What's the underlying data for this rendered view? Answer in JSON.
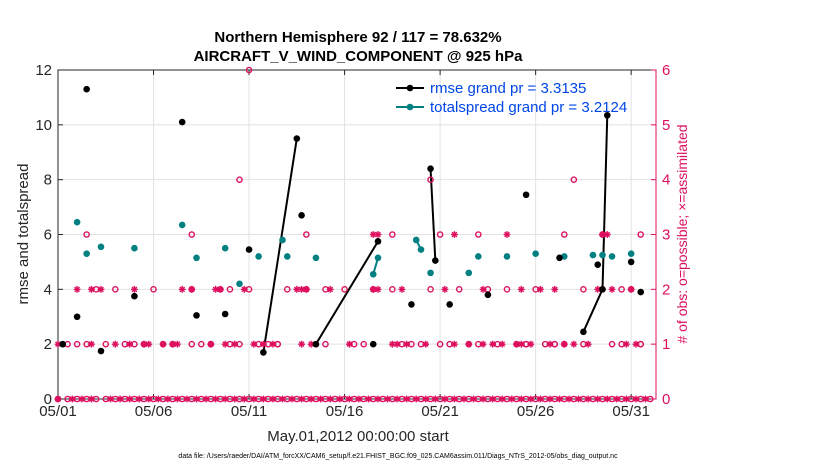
{
  "chart_data": {
    "type": "scatter",
    "title": "Northern Hemisphere 92 / 117 = 78.632%",
    "subtitle": "AIRCRAFT_V_WIND_COMPONENT @ 925 hPa",
    "xlabel": "May.01,2012 00:00:00 start",
    "ylabel": "rmse and totalspread",
    "y2label": "# of obs: o=possible; ×=assimilated",
    "footer": "data file: /Users/raeder/DAI/ATM_forcXX/CAM6_setup/f.e21.FHIST_BGC.f09_025.CAM6assim.011/Diags_NTrS_2012-05/obs_diag_output.nc",
    "xlim": [
      0,
      31.3
    ],
    "ylim": [
      0,
      12
    ],
    "y2lim": [
      0,
      6
    ],
    "x_ticks": [
      0,
      5,
      10,
      15,
      20,
      25,
      30
    ],
    "x_tick_labels": [
      "05/01",
      "05/06",
      "05/11",
      "05/16",
      "05/21",
      "05/26",
      "05/31"
    ],
    "y_ticks": [
      0,
      2,
      4,
      6,
      8,
      10,
      12
    ],
    "y2_ticks": [
      0,
      1,
      2,
      3,
      4,
      5,
      6
    ],
    "colors": {
      "rmse": "#000000",
      "spread": "#008080",
      "obs": "#dd1060",
      "legend_text": "#0046e6",
      "grid": "#e2e2e2"
    },
    "legend": [
      {
        "name": "rmse grand pr = 3.3135",
        "color": "#000000"
      },
      {
        "name": "totalspread grand pr = 3.2124",
        "color": "#008080"
      }
    ],
    "series": [
      {
        "name": "rmse",
        "x": [
          0.25,
          1.0,
          1.5,
          2.25,
          4.0,
          6.5,
          7.25,
          8.75,
          10.0,
          10.75,
          12.5,
          12.75,
          13.5,
          16.5,
          16.75,
          18.5,
          19.5,
          19.75,
          20.5,
          22.5,
          24.5,
          26.25,
          27.5,
          28.25,
          28.5,
          28.75,
          30.0,
          30.5
        ],
        "y": [
          2.0,
          3.0,
          11.3,
          1.75,
          3.75,
          10.1,
          3.05,
          3.1,
          5.45,
          1.7,
          9.5,
          6.7,
          2.0,
          2.0,
          5.75,
          3.45,
          8.4,
          5.05,
          3.45,
          3.8,
          7.45,
          5.15,
          2.45,
          4.9,
          4.0,
          10.35,
          5.0,
          3.9
        ],
        "connect_pairs": [
          [
            9,
            10
          ],
          [
            12,
            14
          ],
          [
            16,
            17
          ],
          [
            22,
            24
          ],
          [
            24,
            25
          ]
        ]
      },
      {
        "name": "totalspread",
        "x": [
          0.25,
          1.0,
          1.5,
          2.25,
          4.0,
          6.5,
          7.25,
          8.75,
          9.5,
          10.5,
          11.75,
          12.0,
          13.5,
          16.5,
          16.75,
          18.75,
          19.0,
          19.5,
          21.5,
          22.0,
          23.5,
          25.0,
          26.5,
          28.0,
          28.5,
          29.0,
          30.0
        ],
        "y": [
          2.0,
          6.45,
          5.3,
          5.55,
          5.5,
          6.35,
          5.15,
          5.5,
          4.2,
          5.2,
          5.8,
          5.2,
          5.15,
          4.55,
          5.15,
          5.8,
          5.45,
          4.6,
          4.6,
          5.2,
          5.2,
          5.3,
          5.2,
          5.25,
          5.25,
          5.2,
          5.3
        ],
        "connect_pairs": [
          [
            13,
            14
          ],
          [
            15,
            16
          ]
        ]
      },
      {
        "name": "obs_possible",
        "axis": "right",
        "x": [
          0.0,
          0.5,
          1.0,
          1.5,
          2.0,
          2.5,
          3.0,
          3.5,
          4.0,
          4.5,
          5.0,
          5.5,
          6.0,
          6.5,
          7.0,
          7.5,
          8.0,
          8.5,
          9.0,
          9.5,
          10.0,
          10.5,
          11.0,
          11.5,
          12.0,
          12.5,
          13.0,
          13.5,
          14.0,
          14.5,
          15.0,
          15.5,
          16.0,
          16.5,
          17.0,
          17.5,
          18.0,
          18.5,
          19.0,
          19.5,
          20.0,
          20.5,
          21.0,
          21.5,
          22.0,
          22.5,
          23.0,
          23.5,
          24.0,
          24.5,
          25.0,
          25.5,
          26.0,
          26.5,
          27.0,
          27.5,
          28.0,
          28.5,
          29.0,
          29.5,
          30.0,
          30.5,
          31.0,
          1.0,
          1.5,
          3.5,
          4.0,
          4.5,
          5.5,
          6.0,
          7.0,
          7.5,
          8.0,
          9.0,
          9.5,
          11.0,
          11.5,
          14.0,
          16.0,
          18.0,
          20.5,
          22.0,
          24.0,
          24.5,
          25.5,
          26.0,
          26.5,
          27.5,
          29.5,
          30.5,
          2.0,
          3.0,
          5.0,
          7.0,
          8.5,
          9.0,
          10.0,
          12.0,
          13.0,
          14.0,
          15.0,
          16.5,
          17.5,
          19.5,
          21.0,
          22.5,
          23.5,
          25.0,
          27.5,
          28.5,
          29.5,
          30.0,
          0.5,
          2.5,
          8.0,
          10.5,
          11.5,
          13.5,
          15.5,
          18.5,
          19.0,
          20.0,
          21.5,
          23.0,
          24.5,
          26.0,
          29.0,
          30.5,
          1.5,
          7.0,
          13.0,
          17.5,
          20.0,
          22.0,
          26.5,
          28.5,
          30.5,
          9.5,
          19.5,
          27.0,
          10.0
        ],
        "y": [
          0,
          0,
          0,
          0,
          0,
          0,
          0,
          0,
          0,
          0,
          0,
          0,
          0,
          0,
          0,
          0,
          0,
          0,
          0,
          0,
          0,
          0,
          0,
          0,
          0,
          0,
          0,
          0,
          0,
          0,
          0,
          0,
          0,
          0,
          0,
          0,
          0,
          0,
          0,
          0,
          0,
          0,
          0,
          0,
          0,
          0,
          0,
          0,
          0,
          0,
          0,
          0,
          0,
          0,
          0,
          0,
          0,
          0,
          0,
          0,
          0,
          0,
          0,
          1,
          1,
          1,
          1,
          1,
          1,
          1,
          1,
          1,
          1,
          1,
          1,
          1,
          1,
          1,
          1,
          1,
          1,
          1,
          1,
          1,
          1,
          1,
          1,
          1,
          1,
          1,
          2,
          2,
          2,
          2,
          2,
          2,
          2,
          2,
          2,
          2,
          2,
          2,
          2,
          2,
          2,
          2,
          2,
          2,
          2,
          2,
          2,
          2,
          1,
          1,
          1,
          1,
          1,
          1,
          1,
          1,
          1,
          1,
          1,
          1,
          1,
          1,
          1,
          1,
          3,
          3,
          3,
          3,
          3,
          3,
          3,
          3,
          3,
          4,
          4,
          4,
          6
        ]
      },
      {
        "name": "obs_assimilated",
        "axis": "right",
        "x": [
          0.0,
          0.75,
          1.25,
          1.75,
          2.75,
          3.25,
          3.75,
          4.25,
          4.75,
          5.25,
          5.75,
          6.25,
          6.75,
          7.25,
          7.75,
          8.25,
          8.75,
          9.25,
          9.75,
          10.25,
          10.75,
          11.25,
          11.75,
          12.25,
          12.75,
          13.25,
          13.75,
          14.25,
          14.75,
          15.25,
          15.75,
          16.25,
          16.75,
          17.25,
          17.75,
          18.25,
          18.75,
          19.25,
          19.75,
          20.25,
          20.75,
          21.25,
          21.75,
          22.25,
          22.75,
          23.25,
          23.75,
          24.25,
          24.75,
          25.25,
          25.75,
          26.25,
          26.75,
          27.25,
          27.75,
          28.25,
          28.75,
          29.25,
          29.75,
          30.25,
          30.75,
          0.0,
          1.75,
          3.0,
          3.75,
          4.5,
          4.75,
          5.5,
          6.0,
          6.25,
          8.0,
          8.75,
          9.25,
          10.25,
          10.75,
          11.25,
          12.75,
          13.25,
          15.25,
          17.5,
          17.75,
          18.25,
          19.25,
          20.75,
          21.5,
          22.25,
          22.75,
          23.25,
          24.0,
          24.25,
          24.75,
          25.75,
          26.5,
          27.0,
          27.75,
          29.75,
          30.25,
          1.0,
          1.75,
          2.25,
          4.0,
          6.5,
          7.0,
          8.25,
          8.5,
          9.75,
          12.5,
          12.75,
          13.0,
          14.25,
          16.5,
          16.75,
          18.0,
          20.25,
          22.25,
          24.25,
          25.25,
          26.0,
          28.25,
          29.0,
          30.0,
          16.5,
          16.75,
          20.75,
          23.5,
          28.5,
          28.75
        ],
        "y": [
          0,
          0,
          0,
          0,
          0,
          0,
          0,
          0,
          0,
          0,
          0,
          0,
          0,
          0,
          0,
          0,
          0,
          0,
          0,
          0,
          0,
          0,
          0,
          0,
          0,
          0,
          0,
          0,
          0,
          0,
          0,
          0,
          0,
          0,
          0,
          0,
          0,
          0,
          0,
          0,
          0,
          0,
          0,
          0,
          0,
          0,
          0,
          0,
          0,
          0,
          0,
          0,
          0,
          0,
          0,
          0,
          0,
          0,
          0,
          0,
          0,
          1,
          1,
          1,
          1,
          1,
          1,
          1,
          1,
          1,
          1,
          1,
          1,
          1,
          1,
          1,
          1,
          1,
          1,
          1,
          1,
          1,
          1,
          1,
          1,
          1,
          1,
          1,
          1,
          1,
          1,
          1,
          1,
          1,
          1,
          1,
          1,
          2,
          2,
          2,
          2,
          2,
          2,
          2,
          2,
          2,
          2,
          2,
          2,
          2,
          2,
          2,
          2,
          2,
          2,
          2,
          2,
          2,
          2,
          2,
          2,
          3,
          3,
          3,
          3,
          3,
          3
        ]
      }
    ]
  }
}
